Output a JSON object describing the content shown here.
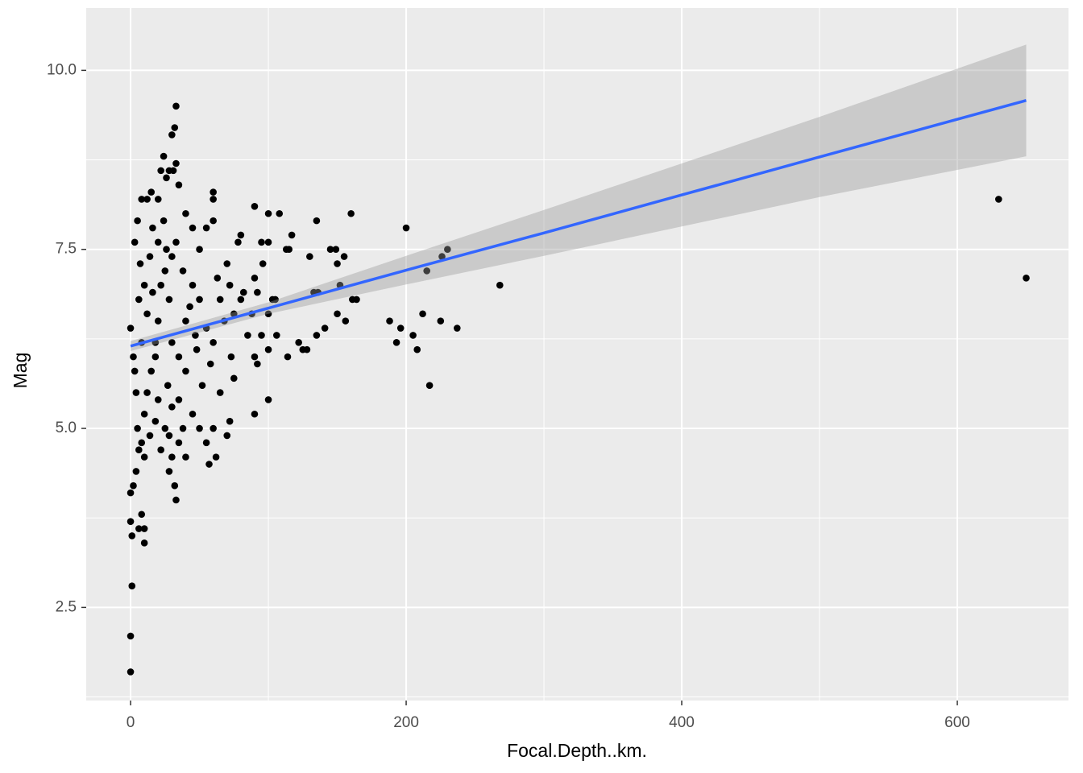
{
  "chart_data": {
    "type": "scatter",
    "x_label": "Focal.Depth..km.",
    "y_label": "Mag",
    "xlim": [
      -32.2,
      680.7
    ],
    "ylim": [
      1.2,
      10.87
    ],
    "xticks": [
      0,
      200,
      400,
      600
    ],
    "yticks": [
      {
        "value": 2.5,
        "label": "2.5"
      },
      {
        "value": 5,
        "label": "5.0"
      },
      7.5,
      {
        "value": 10,
        "label": "10.0"
      }
    ],
    "xminor": [
      100,
      300,
      500
    ],
    "yminor": [
      1.25,
      3.75,
      6.25,
      8.75
    ],
    "grid": true,
    "color": "#000000",
    "x": [
      0,
      0,
      1,
      0,
      1,
      0,
      2,
      4,
      6,
      8,
      10,
      10,
      33,
      32,
      30,
      28,
      630,
      650,
      268,
      217,
      237,
      230,
      226,
      215,
      212,
      225,
      205,
      208,
      200,
      193,
      196,
      188,
      160,
      161,
      164,
      150,
      156,
      152,
      155,
      149,
      145,
      150,
      135,
      130,
      133,
      136,
      141,
      135,
      128,
      125,
      122,
      114,
      106,
      115,
      117,
      113,
      108,
      100,
      90,
      100,
      95,
      96,
      90,
      92,
      103,
      105,
      100,
      95,
      100,
      90,
      92,
      100,
      90,
      80,
      78,
      80,
      70,
      72,
      75,
      73,
      75,
      72,
      70,
      65,
      60,
      57,
      62,
      55,
      50,
      45,
      40,
      35,
      30,
      60,
      60,
      60,
      55,
      50,
      45,
      40,
      35,
      33,
      31,
      28,
      24,
      22,
      26,
      30,
      32,
      33,
      20,
      15,
      12,
      8,
      5,
      3,
      0,
      2,
      4,
      5,
      8,
      10,
      12,
      15,
      18,
      20,
      22,
      25,
      28,
      30,
      35,
      40,
      45,
      50,
      55,
      60,
      65,
      10,
      12,
      14,
      16,
      18,
      20,
      25,
      27,
      35,
      40,
      48,
      52,
      58,
      6,
      8,
      3,
      7,
      20,
      24,
      33,
      38,
      43,
      47,
      63,
      68,
      85,
      82,
      88,
      28,
      22,
      18,
      14,
      10,
      6,
      38,
      30,
      26,
      16
    ],
    "values": [
      1.6,
      2.1,
      2.8,
      3.7,
      3.5,
      4.1,
      4.2,
      4.4,
      3.6,
      3.8,
      3.4,
      3.6,
      4.0,
      4.2,
      4.6,
      4.4,
      8.2,
      7.1,
      7.0,
      5.6,
      6.4,
      7.5,
      7.4,
      7.2,
      6.6,
      6.5,
      6.3,
      6.1,
      7.8,
      6.2,
      6.4,
      6.5,
      8.0,
      6.8,
      6.8,
      6.6,
      6.5,
      7.0,
      7.4,
      7.5,
      7.5,
      7.3,
      7.9,
      7.4,
      6.9,
      6.9,
      6.4,
      6.3,
      6.1,
      6.1,
      6.2,
      6.0,
      6.3,
      7.5,
      7.7,
      7.5,
      8.0,
      8.0,
      8.1,
      7.6,
      7.6,
      7.3,
      7.1,
      6.9,
      6.8,
      6.8,
      6.6,
      6.3,
      6.1,
      6.0,
      5.9,
      5.4,
      5.2,
      6.8,
      7.6,
      7.7,
      7.3,
      7.0,
      6.6,
      6.0,
      5.7,
      5.1,
      4.9,
      5.5,
      5.0,
      4.5,
      4.6,
      4.8,
      5.0,
      5.2,
      4.6,
      4.8,
      5.3,
      8.2,
      8.3,
      7.9,
      7.8,
      7.5,
      7.8,
      8.0,
      8.4,
      8.7,
      8.6,
      8.6,
      8.8,
      8.6,
      8.5,
      9.1,
      9.2,
      9.5,
      8.2,
      8.3,
      8.2,
      8.2,
      7.9,
      7.6,
      6.4,
      6.0,
      5.5,
      5.0,
      4.8,
      5.2,
      5.5,
      5.8,
      6.0,
      6.5,
      7.0,
      7.2,
      6.8,
      6.2,
      6.0,
      6.5,
      7.0,
      6.8,
      6.4,
      6.2,
      6.8,
      7.0,
      6.6,
      7.4,
      7.8,
      6.2,
      5.4,
      5.0,
      5.6,
      5.4,
      5.8,
      6.1,
      5.6,
      5.9,
      6.8,
      6.2,
      5.8,
      7.3,
      7.6,
      7.9,
      7.6,
      7.2,
      6.7,
      6.3,
      7.1,
      6.5,
      6.3,
      6.9,
      6.6,
      4.9,
      4.7,
      5.1,
      4.9,
      4.6,
      4.7,
      5.0,
      7.4,
      7.5,
      6.9
    ],
    "trend": {
      "color": "#3366FF",
      "band_color": "#999999",
      "x": [
        0,
        100,
        200,
        300,
        400,
        500,
        650
      ],
      "y": [
        6.15,
        6.68,
        7.21,
        7.73,
        8.26,
        8.79,
        9.58
      ],
      "lower": [
        6.08,
        6.6,
        7.01,
        7.41,
        7.82,
        8.23,
        8.8
      ],
      "upper": [
        6.22,
        6.76,
        7.41,
        8.05,
        8.7,
        9.35,
        10.36
      ]
    }
  }
}
